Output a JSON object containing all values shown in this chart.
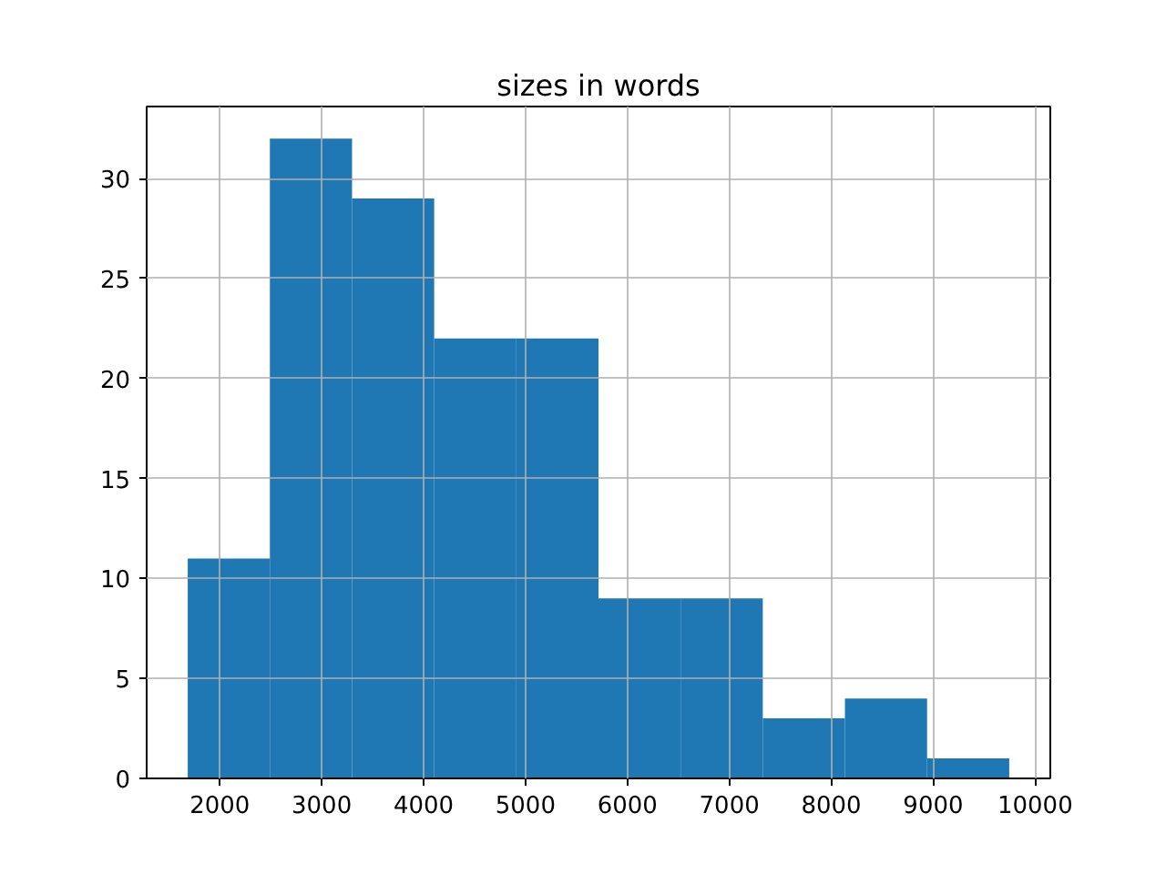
{
  "chart_data": {
    "type": "histogram",
    "title": "sizes in words",
    "bins": [
      1686,
      2492,
      3298,
      4104,
      4910,
      5716,
      6522,
      7328,
      8134,
      8940,
      9746
    ],
    "values": [
      11,
      32,
      29,
      22,
      22,
      9,
      9,
      3,
      4,
      1
    ],
    "color": "#1f77b4",
    "xlim": [
      1283,
      10149
    ],
    "ylim": [
      0,
      33.6
    ],
    "xticks": [
      2000,
      3000,
      4000,
      5000,
      6000,
      7000,
      8000,
      9000,
      10000
    ],
    "yticks": [
      0,
      5,
      10,
      15,
      20,
      25,
      30
    ],
    "grid": true
  }
}
